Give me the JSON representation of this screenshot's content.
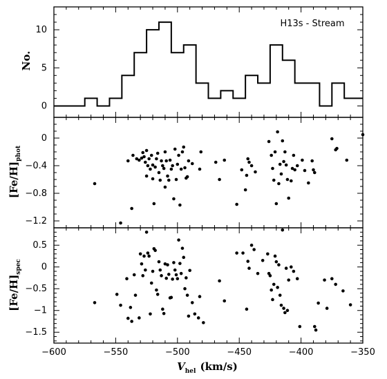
{
  "chart_data": [
    {
      "panel": "top",
      "type": "histogram",
      "annotation": "H13s - Stream",
      "ylabel": "No.",
      "xlim": [
        -600,
        -350
      ],
      "ylim": [
        -1.5,
        13
      ],
      "yticks": [
        0,
        5,
        10
      ],
      "bin_edges": [
        -600,
        -585,
        -575,
        -565,
        -555,
        -545,
        -535,
        -525,
        -515,
        -505,
        -495,
        -485,
        -475,
        -465,
        -455,
        -445,
        -435,
        -425,
        -415,
        -405,
        -395,
        -385,
        -375,
        -365,
        -355,
        -350
      ],
      "counts": [
        0,
        0,
        1,
        0,
        1,
        4,
        7,
        10,
        11,
        7,
        8,
        3,
        1,
        2,
        1,
        4,
        3,
        8,
        6,
        3,
        3,
        0,
        3,
        1,
        1
      ]
    },
    {
      "panel": "middle",
      "type": "scatter",
      "ylabel": "[Fe/H]",
      "ylabel_sub": "phot",
      "xlim": [
        -600,
        -350
      ],
      "ylim": [
        -1.3,
        0.3
      ],
      "yticks": [
        0,
        -0.4,
        -0.8,
        -1.2
      ],
      "yticklabels": [
        "0",
        "−0.4",
        "−0.8",
        "−1.2"
      ],
      "points": [
        [
          -567,
          -0.66
        ],
        [
          -546,
          -1.23
        ],
        [
          -540,
          -0.33
        ],
        [
          -537,
          -1.02
        ],
        [
          -536,
          -0.25
        ],
        [
          -533,
          -0.3
        ],
        [
          -531,
          -0.32
        ],
        [
          -529,
          -0.29
        ],
        [
          -528,
          -0.21
        ],
        [
          -527,
          -0.27
        ],
        [
          -526,
          -0.35
        ],
        [
          -525,
          -0.18
        ],
        [
          -525,
          -0.55
        ],
        [
          -524,
          -0.4
        ],
        [
          -523,
          -0.3
        ],
        [
          -522,
          -0.45
        ],
        [
          -521,
          -0.25
        ],
        [
          -520,
          -0.39
        ],
        [
          -520,
          -0.59
        ],
        [
          -519,
          -0.95
        ],
        [
          -518,
          -0.42
        ],
        [
          -517,
          -0.3
        ],
        [
          -516,
          -0.22
        ],
        [
          -515,
          -0.5
        ],
        [
          -514,
          -0.61
        ],
        [
          -513,
          -0.33
        ],
        [
          -512,
          -0.4
        ],
        [
          -511,
          -0.44
        ],
        [
          -510,
          -0.2
        ],
        [
          -510,
          -0.71
        ],
        [
          -509,
          -0.33
        ],
        [
          -508,
          -0.55
        ],
        [
          -507,
          -0.61
        ],
        [
          -506,
          -0.32
        ],
        [
          -505,
          -0.45
        ],
        [
          -504,
          -0.4
        ],
        [
          -503,
          -0.88
        ],
        [
          -502,
          -0.16
        ],
        [
          -501,
          -0.6
        ],
        [
          -500,
          -0.38
        ],
        [
          -499,
          -0.25
        ],
        [
          -498,
          -0.97
        ],
        [
          -497,
          -0.45
        ],
        [
          -496,
          -0.2
        ],
        [
          -495,
          -0.13
        ],
        [
          -494,
          -0.43
        ],
        [
          -493,
          -0.58
        ],
        [
          -492,
          -0.56
        ],
        [
          -491,
          -0.33
        ],
        [
          -488,
          -0.37
        ],
        [
          -482,
          -0.45
        ],
        [
          -481,
          -0.2
        ],
        [
          -469,
          -0.35
        ],
        [
          -466,
          -0.6
        ],
        [
          -462,
          -0.32
        ],
        [
          -452,
          -0.96
        ],
        [
          -448,
          -0.46
        ],
        [
          -445,
          -0.75
        ],
        [
          -444,
          -0.54
        ],
        [
          -443,
          -0.3
        ],
        [
          -442,
          -0.35
        ],
        [
          -440,
          -0.4
        ],
        [
          -437,
          -0.49
        ],
        [
          -426,
          -0.05
        ],
        [
          -424,
          -0.25
        ],
        [
          -423,
          -0.44
        ],
        [
          -422,
          -0.61
        ],
        [
          -421,
          -0.2
        ],
        [
          -420,
          -0.95
        ],
        [
          -419,
          0.09
        ],
        [
          -418,
          -0.66
        ],
        [
          -417,
          -0.38
        ],
        [
          -416,
          -0.52
        ],
        [
          -415,
          -0.04
        ],
        [
          -414,
          -0.34
        ],
        [
          -413,
          -0.2
        ],
        [
          -412,
          -0.39
        ],
        [
          -411,
          -0.6
        ],
        [
          -410,
          -0.87
        ],
        [
          -408,
          -0.62
        ],
        [
          -407,
          -0.44
        ],
        [
          -406,
          -0.25
        ],
        [
          -405,
          -0.46
        ],
        [
          -403,
          -0.4
        ],
        [
          -399,
          -0.32
        ],
        [
          -397,
          -0.47
        ],
        [
          -394,
          -0.65
        ],
        [
          -391,
          -0.33
        ],
        [
          -390,
          -0.46
        ],
        [
          -389,
          -0.5
        ],
        [
          -375,
          -0.01
        ],
        [
          -372,
          -0.17
        ],
        [
          -371,
          -0.15
        ],
        [
          -363,
          -0.32
        ],
        [
          -350,
          0.05
        ]
      ]
    },
    {
      "panel": "bottom",
      "type": "scatter",
      "ylabel": "[Fe/H]",
      "ylabel_sub": "spec",
      "xlabel": "V",
      "xlabel_sub": "hel",
      "xlabel_unit": "(km/s)",
      "xlim": [
        -600,
        -350
      ],
      "ylim": [
        -1.75,
        0.9
      ],
      "yticks": [
        0.5,
        0,
        -0.5,
        -1,
        -1.5
      ],
      "yticklabels": [
        "0.5",
        "0",
        "−0.5",
        "−1",
        "−1.5"
      ],
      "xticks": [
        -600,
        -550,
        -500,
        -450,
        -400,
        -350
      ],
      "xticklabels": [
        "−600",
        "−550",
        "−500",
        "−450",
        "−400",
        "−350"
      ],
      "points": [
        [
          -567,
          -0.82
        ],
        [
          -549,
          -0.63
        ],
        [
          -546,
          -0.88
        ],
        [
          -541,
          -0.27
        ],
        [
          -540,
          -1.18
        ],
        [
          -538,
          -0.93
        ],
        [
          -537,
          -1.25
        ],
        [
          -535,
          -0.18
        ],
        [
          -534,
          -0.65
        ],
        [
          -531,
          -1.17
        ],
        [
          -530,
          0.3
        ],
        [
          -529,
          0.07
        ],
        [
          -528,
          -0.2
        ],
        [
          -527,
          0.25
        ],
        [
          -526,
          -0.07
        ],
        [
          -525,
          0.8
        ],
        [
          -524,
          0.32
        ],
        [
          -523,
          0.25
        ],
        [
          -522,
          -1.08
        ],
        [
          -521,
          -0.37
        ],
        [
          -520,
          -0.1
        ],
        [
          -519,
          0.42
        ],
        [
          -518,
          0.38
        ],
        [
          -517,
          -0.53
        ],
        [
          -516,
          -0.63
        ],
        [
          -515,
          0.12
        ],
        [
          -514,
          -0.07
        ],
        [
          -513,
          -0.2
        ],
        [
          -512,
          -0.97
        ],
        [
          -511,
          -1.07
        ],
        [
          -510,
          0.07
        ],
        [
          -509,
          -0.26
        ],
        [
          -508,
          0.05
        ],
        [
          -507,
          -0.17
        ],
        [
          -506,
          -0.71
        ],
        [
          -505,
          -0.7
        ],
        [
          -504,
          -0.28
        ],
        [
          -503,
          0.1
        ],
        [
          -502,
          -0.07
        ],
        [
          -501,
          -0.18
        ],
        [
          -500,
          -0.27
        ],
        [
          -499,
          0.62
        ],
        [
          -498,
          0.08
        ],
        [
          -497,
          -0.15
        ],
        [
          -496,
          0.43
        ],
        [
          -495,
          0.22
        ],
        [
          -494,
          -0.5
        ],
        [
          -493,
          -0.25
        ],
        [
          -492,
          -0.65
        ],
        [
          -491,
          -1.13
        ],
        [
          -490,
          -0.08
        ],
        [
          -488,
          -0.82
        ],
        [
          -486,
          -1.08
        ],
        [
          -483,
          -1.17
        ],
        [
          -482,
          -0.68
        ],
        [
          -479,
          -1.28
        ],
        [
          -466,
          -0.32
        ],
        [
          -462,
          -0.78
        ],
        [
          -452,
          0.32
        ],
        [
          -447,
          0.32
        ],
        [
          -444,
          -0.97
        ],
        [
          -443,
          0.13
        ],
        [
          -442,
          -0.03
        ],
        [
          -440,
          0.5
        ],
        [
          -438,
          0.4
        ],
        [
          -435,
          -0.15
        ],
        [
          -431,
          0.15
        ],
        [
          -427,
          0.3
        ],
        [
          -426,
          -0.15
        ],
        [
          -425,
          -0.2
        ],
        [
          -424,
          -0.53
        ],
        [
          -423,
          -0.75
        ],
        [
          -422,
          -0.4
        ],
        [
          -421,
          0.25
        ],
        [
          -420,
          0.12
        ],
        [
          -419,
          -0.47
        ],
        [
          -418,
          0.05
        ],
        [
          -417,
          -0.65
        ],
        [
          -416,
          -0.88
        ],
        [
          -415,
          0.85
        ],
        [
          -414,
          -0.95
        ],
        [
          -413,
          -1.05
        ],
        [
          -412,
          -0.03
        ],
        [
          -411,
          -1.0
        ],
        [
          -410,
          -0.3
        ],
        [
          -408,
          0.0
        ],
        [
          -406,
          -0.1
        ],
        [
          -403,
          -0.27
        ],
        [
          -401,
          -1.37
        ],
        [
          -389,
          -1.37
        ],
        [
          -388,
          -1.45
        ],
        [
          -386,
          -0.83
        ],
        [
          -381,
          -0.3
        ],
        [
          -379,
          -0.95
        ],
        [
          -375,
          -0.27
        ],
        [
          -372,
          -0.4
        ],
        [
          -366,
          -0.55
        ],
        [
          -360,
          -0.87
        ]
      ]
    }
  ]
}
